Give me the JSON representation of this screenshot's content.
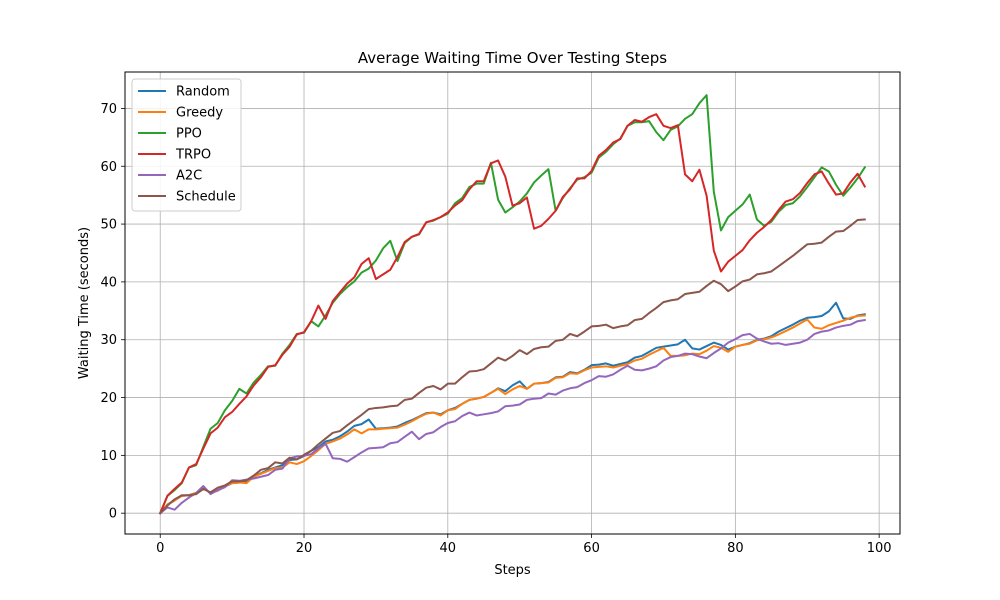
{
  "chart_data": {
    "type": "line",
    "title": "Average Waiting Time Over Testing Steps",
    "xlabel": "Steps",
    "ylabel": "Waiting Time (seconds)",
    "xlim": [
      -4.9,
      102.9
    ],
    "ylim": [
      -3.6,
      76.3
    ],
    "xticks": [
      0,
      20,
      40,
      60,
      80,
      100
    ],
    "yticks": [
      0,
      10,
      20,
      30,
      40,
      50,
      60,
      70
    ],
    "grid": true,
    "legend_position": "top-left",
    "x": [
      0,
      1,
      2,
      3,
      4,
      5,
      6,
      7,
      8,
      9,
      10,
      11,
      12,
      13,
      14,
      15,
      16,
      17,
      18,
      19,
      20,
      21,
      22,
      23,
      24,
      25,
      26,
      27,
      28,
      29,
      30,
      31,
      32,
      33,
      34,
      35,
      36,
      37,
      38,
      39,
      40,
      41,
      42,
      43,
      44,
      45,
      46,
      47,
      48,
      49,
      50,
      51,
      52,
      53,
      54,
      55,
      56,
      57,
      58,
      59,
      60,
      61,
      62,
      63,
      64,
      65,
      66,
      67,
      68,
      69,
      70,
      71,
      72,
      73,
      74,
      75,
      76,
      77,
      78,
      79,
      80,
      81,
      82,
      83,
      84,
      85,
      86,
      87,
      88,
      89,
      90,
      91,
      92,
      93,
      94,
      95,
      96,
      97,
      98
    ],
    "series": [
      {
        "name": "Random",
        "color": "#1f77b4",
        "values": [
          0,
          1.5,
          2.2,
          3,
          3.1,
          3.5,
          4.3,
          3.5,
          3.9,
          4.6,
          5.2,
          5.3,
          5.4,
          6.4,
          6.9,
          7.5,
          7.9,
          8.3,
          9.2,
          9.3,
          9.9,
          10.8,
          11.4,
          12.4,
          12.7,
          13.3,
          14.1,
          15.1,
          15.4,
          16.2,
          14.6,
          14.7,
          14.8,
          15,
          15.6,
          16.1,
          16.7,
          17.3,
          17.4,
          17.1,
          17.8,
          18.2,
          18.9,
          19.6,
          19.8,
          20.1,
          20.8,
          21.6,
          21.1,
          22.1,
          22.8,
          21.5,
          22.4,
          22.5,
          22.7,
          23.5,
          23.6,
          24.4,
          24.2,
          24.8,
          25.6,
          25.7,
          25.9,
          25.5,
          25.8,
          26.1,
          26.9,
          27.2,
          27.9,
          28.6,
          28.8,
          29,
          29.2,
          30,
          28.5,
          28.3,
          28.9,
          29.5,
          29.1,
          28.3,
          28.8,
          29.1,
          29.4,
          30,
          30.2,
          30.6,
          31.4,
          32,
          32.6,
          33.3,
          33.8,
          33.9,
          34.1,
          34.9,
          36.4,
          33.7,
          33.6,
          34.2,
          34.4
        ]
      },
      {
        "name": "Greedy",
        "color": "#ff7f0e",
        "values": [
          0,
          1.5,
          2.2,
          3,
          3.1,
          3.5,
          4.3,
          3.5,
          3.9,
          4.6,
          5.2,
          5.3,
          5.2,
          6.3,
          6.8,
          7.3,
          7.8,
          7.9,
          8.8,
          8.5,
          9,
          9.9,
          10.9,
          12,
          12.4,
          12.9,
          13.6,
          14.5,
          13.8,
          14.5,
          14.5,
          14.6,
          14.7,
          14.8,
          15.3,
          15.9,
          16.6,
          17.2,
          17.4,
          16.9,
          17.8,
          18,
          18.9,
          19.6,
          19.8,
          20.1,
          20.8,
          21.5,
          20.6,
          21.4,
          22,
          21.5,
          22.4,
          22.5,
          22.6,
          23.4,
          23.5,
          24.2,
          24.1,
          24.7,
          25.2,
          25.3,
          25.4,
          25.2,
          25.5,
          25.8,
          26.4,
          26.7,
          27.4,
          28,
          28.6,
          27.2,
          27.2,
          27.3,
          27.6,
          27.5,
          28.1,
          28.9,
          28.6,
          27.9,
          28.8,
          29.1,
          29.3,
          29.9,
          30.1,
          30.4,
          30.9,
          31.5,
          32.1,
          32.8,
          33.5,
          32.1,
          31.9,
          32.5,
          32.9,
          33.3,
          33.8,
          34.1,
          34.2
        ]
      },
      {
        "name": "PPO",
        "color": "#2ca02c",
        "values": [
          0,
          3,
          4,
          5.2,
          7.9,
          8.3,
          11.5,
          14.6,
          15.6,
          17.8,
          19.4,
          21.5,
          20.7,
          22.6,
          23.9,
          25.4,
          25.5,
          27.6,
          29.1,
          31,
          31.2,
          33.2,
          32.3,
          34.2,
          36.4,
          37.9,
          39.1,
          40.1,
          41.6,
          42.3,
          43.7,
          45.8,
          47.1,
          43.6,
          46.7,
          47.8,
          48.2,
          50.3,
          50.6,
          51.2,
          51.8,
          53.6,
          54.5,
          56.4,
          57,
          57,
          60.6,
          54.2,
          52,
          52.9,
          53.9,
          55.3,
          57.2,
          58.4,
          59.5,
          52.3,
          54.5,
          56.2,
          57.7,
          58.1,
          58.9,
          61.5,
          62.5,
          63.8,
          64.8,
          67,
          67.6,
          67.6,
          67.8,
          65.9,
          64.5,
          66.3,
          66.9,
          68.2,
          69,
          70.9,
          72.3,
          55.6,
          48.9,
          51.2,
          52.3,
          53.4,
          55.1,
          50.8,
          49.7,
          50.4,
          52.1,
          53.3,
          53.6,
          54.8,
          56.4,
          58.1,
          59.8,
          59.1,
          56.8,
          54.9,
          56.3,
          57.9,
          59.8
        ]
      },
      {
        "name": "TRPO",
        "color": "#d62728",
        "values": [
          0,
          3,
          4.2,
          5.3,
          7.9,
          8.5,
          11.2,
          13.8,
          14.8,
          16.6,
          17.5,
          18.9,
          20.2,
          22.1,
          23.5,
          25.3,
          25.6,
          27.4,
          28.8,
          30.9,
          31.3,
          33.2,
          35.9,
          33.6,
          36.7,
          38.2,
          39.7,
          40.8,
          43.1,
          44.1,
          40.5,
          41.3,
          42.1,
          44.3,
          46.9,
          47.8,
          48.3,
          50.3,
          50.7,
          51.2,
          52,
          53.2,
          54.1,
          56,
          57.4,
          57.4,
          60.5,
          61,
          58.2,
          53.2,
          53.6,
          54.6,
          49.2,
          49.7,
          50.9,
          52.3,
          54.7,
          56,
          57.9,
          57.9,
          59.2,
          61.8,
          62.8,
          64.1,
          64.7,
          67,
          68,
          67.7,
          68.5,
          69,
          67,
          66.6,
          67.1,
          58.6,
          57.4,
          59.4,
          54.9,
          45.4,
          41.8,
          43.5,
          44.5,
          45.5,
          47.2,
          48.5,
          49.5,
          50.7,
          52.4,
          53.9,
          54.3,
          55.4,
          57.1,
          58.6,
          59.1,
          57,
          55.1,
          55.3,
          57.2,
          58.7,
          56.5
        ]
      },
      {
        "name": "A2C",
        "color": "#9467bd",
        "values": [
          0,
          1,
          0.6,
          1.8,
          2.7,
          3.5,
          4.7,
          3.3,
          4,
          4.5,
          5.7,
          5.6,
          5.8,
          6,
          6.3,
          6.6,
          7.5,
          7.7,
          9.5,
          9.8,
          9.9,
          10.2,
          11.2,
          12,
          9.5,
          9.4,
          8.9,
          9.7,
          10.5,
          11.2,
          11.3,
          11.4,
          12.1,
          12.3,
          13.2,
          14.1,
          12.8,
          13.7,
          14,
          14.9,
          15.6,
          15.9,
          16.8,
          17.4,
          16.9,
          17.1,
          17.3,
          17.6,
          18.5,
          18.6,
          18.8,
          19.6,
          19.8,
          19.9,
          20.7,
          20.5,
          21.2,
          21.6,
          21.8,
          22.5,
          23,
          23.7,
          23.6,
          24,
          24.8,
          25.5,
          24.8,
          24.7,
          25,
          25.4,
          26.4,
          27,
          27.2,
          27.6,
          27.5,
          27.1,
          26.8,
          27.7,
          28.5,
          29.5,
          30.1,
          30.8,
          31,
          30.2,
          29.7,
          29.3,
          29.4,
          29.1,
          29.3,
          29.5,
          30,
          31,
          31.4,
          31.6,
          32.1,
          32.4,
          32.6,
          33.2,
          33.4
        ]
      },
      {
        "name": "Schedule",
        "color": "#8c564b",
        "values": [
          0,
          1.3,
          2.4,
          3.1,
          3.1,
          3.3,
          4.2,
          3.6,
          4.4,
          4.8,
          5.5,
          5.5,
          5.7,
          6.5,
          7.5,
          7.8,
          8.8,
          8.6,
          9.6,
          9.3,
          10.1,
          10.8,
          11.9,
          12.9,
          13.9,
          14.2,
          15.2,
          16.1,
          17,
          18,
          18.2,
          18.3,
          18.5,
          18.6,
          19.6,
          19.8,
          20.8,
          21.7,
          22,
          21.4,
          22.4,
          22.4,
          23.5,
          24.5,
          24.6,
          24.9,
          25.9,
          26.9,
          26.4,
          27.2,
          28.2,
          27.5,
          28.4,
          28.7,
          28.8,
          29.8,
          30,
          31,
          30.6,
          31.4,
          32.3,
          32.4,
          32.6,
          32,
          32.3,
          32.5,
          33.4,
          33.6,
          34.6,
          35.5,
          36.5,
          36.8,
          37,
          37.9,
          38.1,
          38.3,
          39.3,
          40.2,
          39.6,
          38.4,
          39.2,
          40.1,
          40.4,
          41.3,
          41.5,
          41.8,
          42.7,
          43.6,
          44.5,
          45.5,
          46.5,
          46.6,
          46.8,
          47.8,
          48.7,
          48.8,
          49.7,
          50.7,
          50.8
        ]
      }
    ]
  }
}
